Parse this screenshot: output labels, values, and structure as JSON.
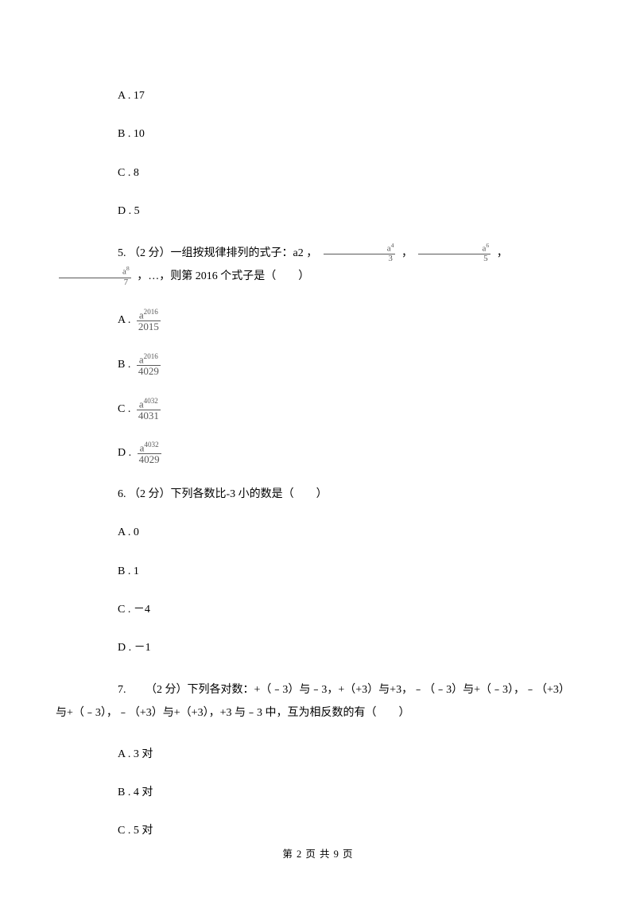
{
  "q4": {
    "optA": "A . 17",
    "optB": "B . 10",
    "optC": "C . 8",
    "optD": "D . 5"
  },
  "q5": {
    "prefix": "5. （2 分）一组按规律排列的式子：a2 ，",
    "mid1": "，",
    "mid2": "，",
    "suffix": "，…，则第 2016 个式子是（　　）",
    "f1num": "a",
    "f1sup": "4",
    "f1den": "3",
    "f2num": "a",
    "f2sup": "6",
    "f2den": "5",
    "f3num": "a",
    "f3sup": "8",
    "f3den": "7",
    "optA": "A .",
    "optAnum": "a",
    "optAsup": "2016",
    "optAden": "2015",
    "optB": "B .",
    "optBnum": "a",
    "optBsup": "2016",
    "optBden": "4029",
    "optC": "C .",
    "optCnum": "a",
    "optCsup": "4032",
    "optCden": "4031",
    "optD": "D .",
    "optDnum": "a",
    "optDsup": "4032",
    "optDden": "4029"
  },
  "q6": {
    "text": "6. （2 分）下列各数比-3 小的数是（　　）",
    "optA": "A . 0",
    "optB": "B . 1",
    "optC": "C . －4",
    "optD": "D . －1"
  },
  "q7": {
    "text": "7. 　　（2 分）下列各对数：+（﹣3）与﹣3，+（+3）与+3，﹣（﹣3）与+（﹣3），﹣（+3）与+（﹣3），﹣（+3）与+（+3），+3 与﹣3 中，互为相反数的有（　　）",
    "optA": "A . 3 对",
    "optB": "B . 4 对",
    "optC": "C . 5 对"
  },
  "footer": "第 2 页 共 9 页"
}
